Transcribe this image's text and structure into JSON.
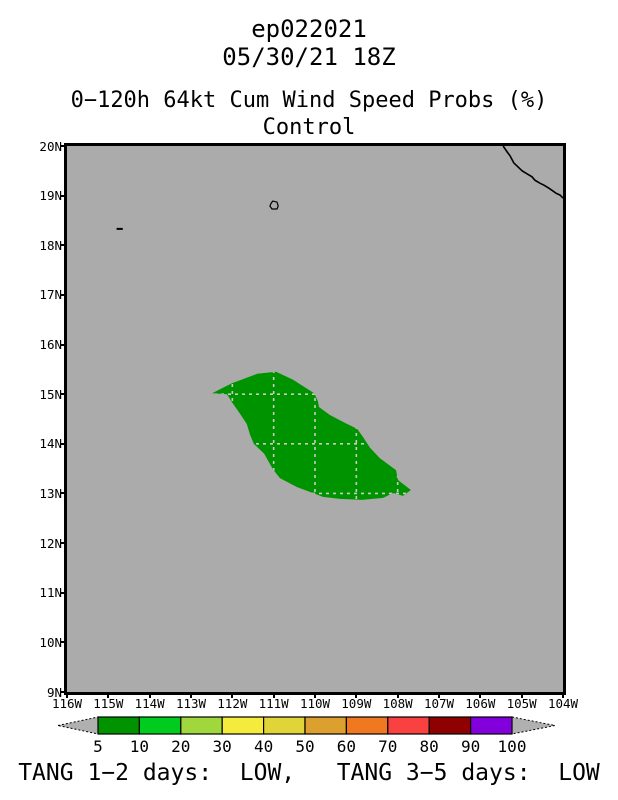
{
  "header": {
    "storm_id": "ep022021",
    "init_time": "05/30/21 18Z",
    "product_title": "0−120h 64kt Cum Wind Speed Probs (%)",
    "member_label": "Control"
  },
  "footer": {
    "tang_statement": "TANG 1−2 days:  LOW,   TANG 3−5 days:  LOW"
  },
  "colors": {
    "map_background": "#ABABAB",
    "frame_border": "#000000",
    "probability_fill": "#009300",
    "gridline_dash": "#C9C9C9",
    "coastline": "#000000",
    "colorbar_arrow_fill": "#B0B0B0",
    "text": "#000000"
  },
  "chart_data": {
    "type": "area",
    "subtype": "filled-contour-probability-map",
    "title": "0−120h 64kt Cum Wind Speed Probs (%)",
    "member": "Control",
    "storm_id": "ep022021",
    "initialization": "05/30/21 18Z",
    "lon_axis": {
      "max_deg_west": 116,
      "min_deg_west": 104,
      "tick_labels": [
        "116W",
        "115W",
        "114W",
        "113W",
        "112W",
        "111W",
        "110W",
        "109W",
        "108W",
        "107W",
        "106W",
        "105W",
        "104W"
      ]
    },
    "lat_axis": {
      "max_deg_north": 20,
      "min_deg_north": 9,
      "tick_labels": [
        "20N",
        "19N",
        "18N",
        "17N",
        "16N",
        "15N",
        "14N",
        "13N",
        "12N",
        "11N",
        "10N",
        "9N"
      ]
    },
    "gridlines": {
      "lon_step_deg": 1,
      "lat_step_deg": 1,
      "style": "dashed",
      "visible_over_contour_only": true
    },
    "colorbar": {
      "tick_labels": [
        "5",
        "10",
        "20",
        "30",
        "40",
        "50",
        "60",
        "70",
        "80",
        "90",
        "100"
      ],
      "segment_colors": [
        "#009300",
        "#00CC1E",
        "#A0D73C",
        "#F5EB3C",
        "#E1D438",
        "#DCA02F",
        "#F07820",
        "#FA4141",
        "#8F0000",
        "#8200DC"
      ]
    },
    "contours": [
      {
        "level_percent": 5,
        "fill": "#009300",
        "polygon_lon_lat_deg": [
          [
            112.49,
            15.02
          ],
          [
            112.01,
            15.22
          ],
          [
            111.4,
            15.41
          ],
          [
            110.94,
            15.45
          ],
          [
            110.53,
            15.29
          ],
          [
            110.02,
            15.02
          ],
          [
            109.93,
            14.86
          ],
          [
            109.9,
            14.74
          ],
          [
            109.64,
            14.58
          ],
          [
            109.27,
            14.42
          ],
          [
            108.98,
            14.3
          ],
          [
            108.84,
            14.14
          ],
          [
            108.67,
            13.92
          ],
          [
            108.43,
            13.71
          ],
          [
            108.04,
            13.47
          ],
          [
            107.99,
            13.27
          ],
          [
            107.68,
            13.07
          ],
          [
            107.87,
            12.95
          ],
          [
            108.11,
            13.01
          ],
          [
            108.35,
            12.91
          ],
          [
            108.86,
            12.87
          ],
          [
            109.4,
            12.89
          ],
          [
            109.81,
            12.93
          ],
          [
            110.05,
            13.01
          ],
          [
            110.44,
            13.13
          ],
          [
            110.85,
            13.31
          ],
          [
            111.02,
            13.49
          ],
          [
            111.23,
            13.8
          ],
          [
            111.48,
            14.0
          ],
          [
            111.57,
            14.18
          ],
          [
            111.65,
            14.4
          ],
          [
            111.84,
            14.64
          ],
          [
            112.01,
            14.84
          ],
          [
            112.13,
            15.0
          ]
        ]
      }
    ],
    "coastline_lon_lat_deg": [
      [
        105.45,
        20.0
      ],
      [
        105.35,
        19.88
      ],
      [
        105.28,
        19.8
      ],
      [
        105.19,
        19.66
      ],
      [
        105.09,
        19.58
      ],
      [
        104.99,
        19.5
      ],
      [
        104.87,
        19.44
      ],
      [
        104.75,
        19.38
      ],
      [
        104.68,
        19.31
      ],
      [
        104.56,
        19.25
      ],
      [
        104.46,
        19.21
      ],
      [
        104.34,
        19.15
      ],
      [
        104.27,
        19.11
      ],
      [
        104.17,
        19.05
      ],
      [
        104.07,
        19.01
      ],
      [
        104.0,
        18.95
      ]
    ],
    "islands": [
      {
        "name": "socorro-island",
        "outline_lon_lat_deg": [
          [
            111.02,
            18.89
          ],
          [
            110.92,
            18.87
          ],
          [
            110.89,
            18.79
          ],
          [
            110.92,
            18.73
          ],
          [
            111.04,
            18.73
          ],
          [
            111.09,
            18.79
          ],
          [
            111.06,
            18.85
          ]
        ]
      },
      {
        "name": "clarion-island",
        "line_lon_lat_deg": [
          [
            114.8,
            18.33
          ],
          [
            114.65,
            18.33
          ]
        ]
      }
    ],
    "tang_statement": "TANG 1−2 days:  LOW,   TANG 3−5 days:  LOW"
  }
}
